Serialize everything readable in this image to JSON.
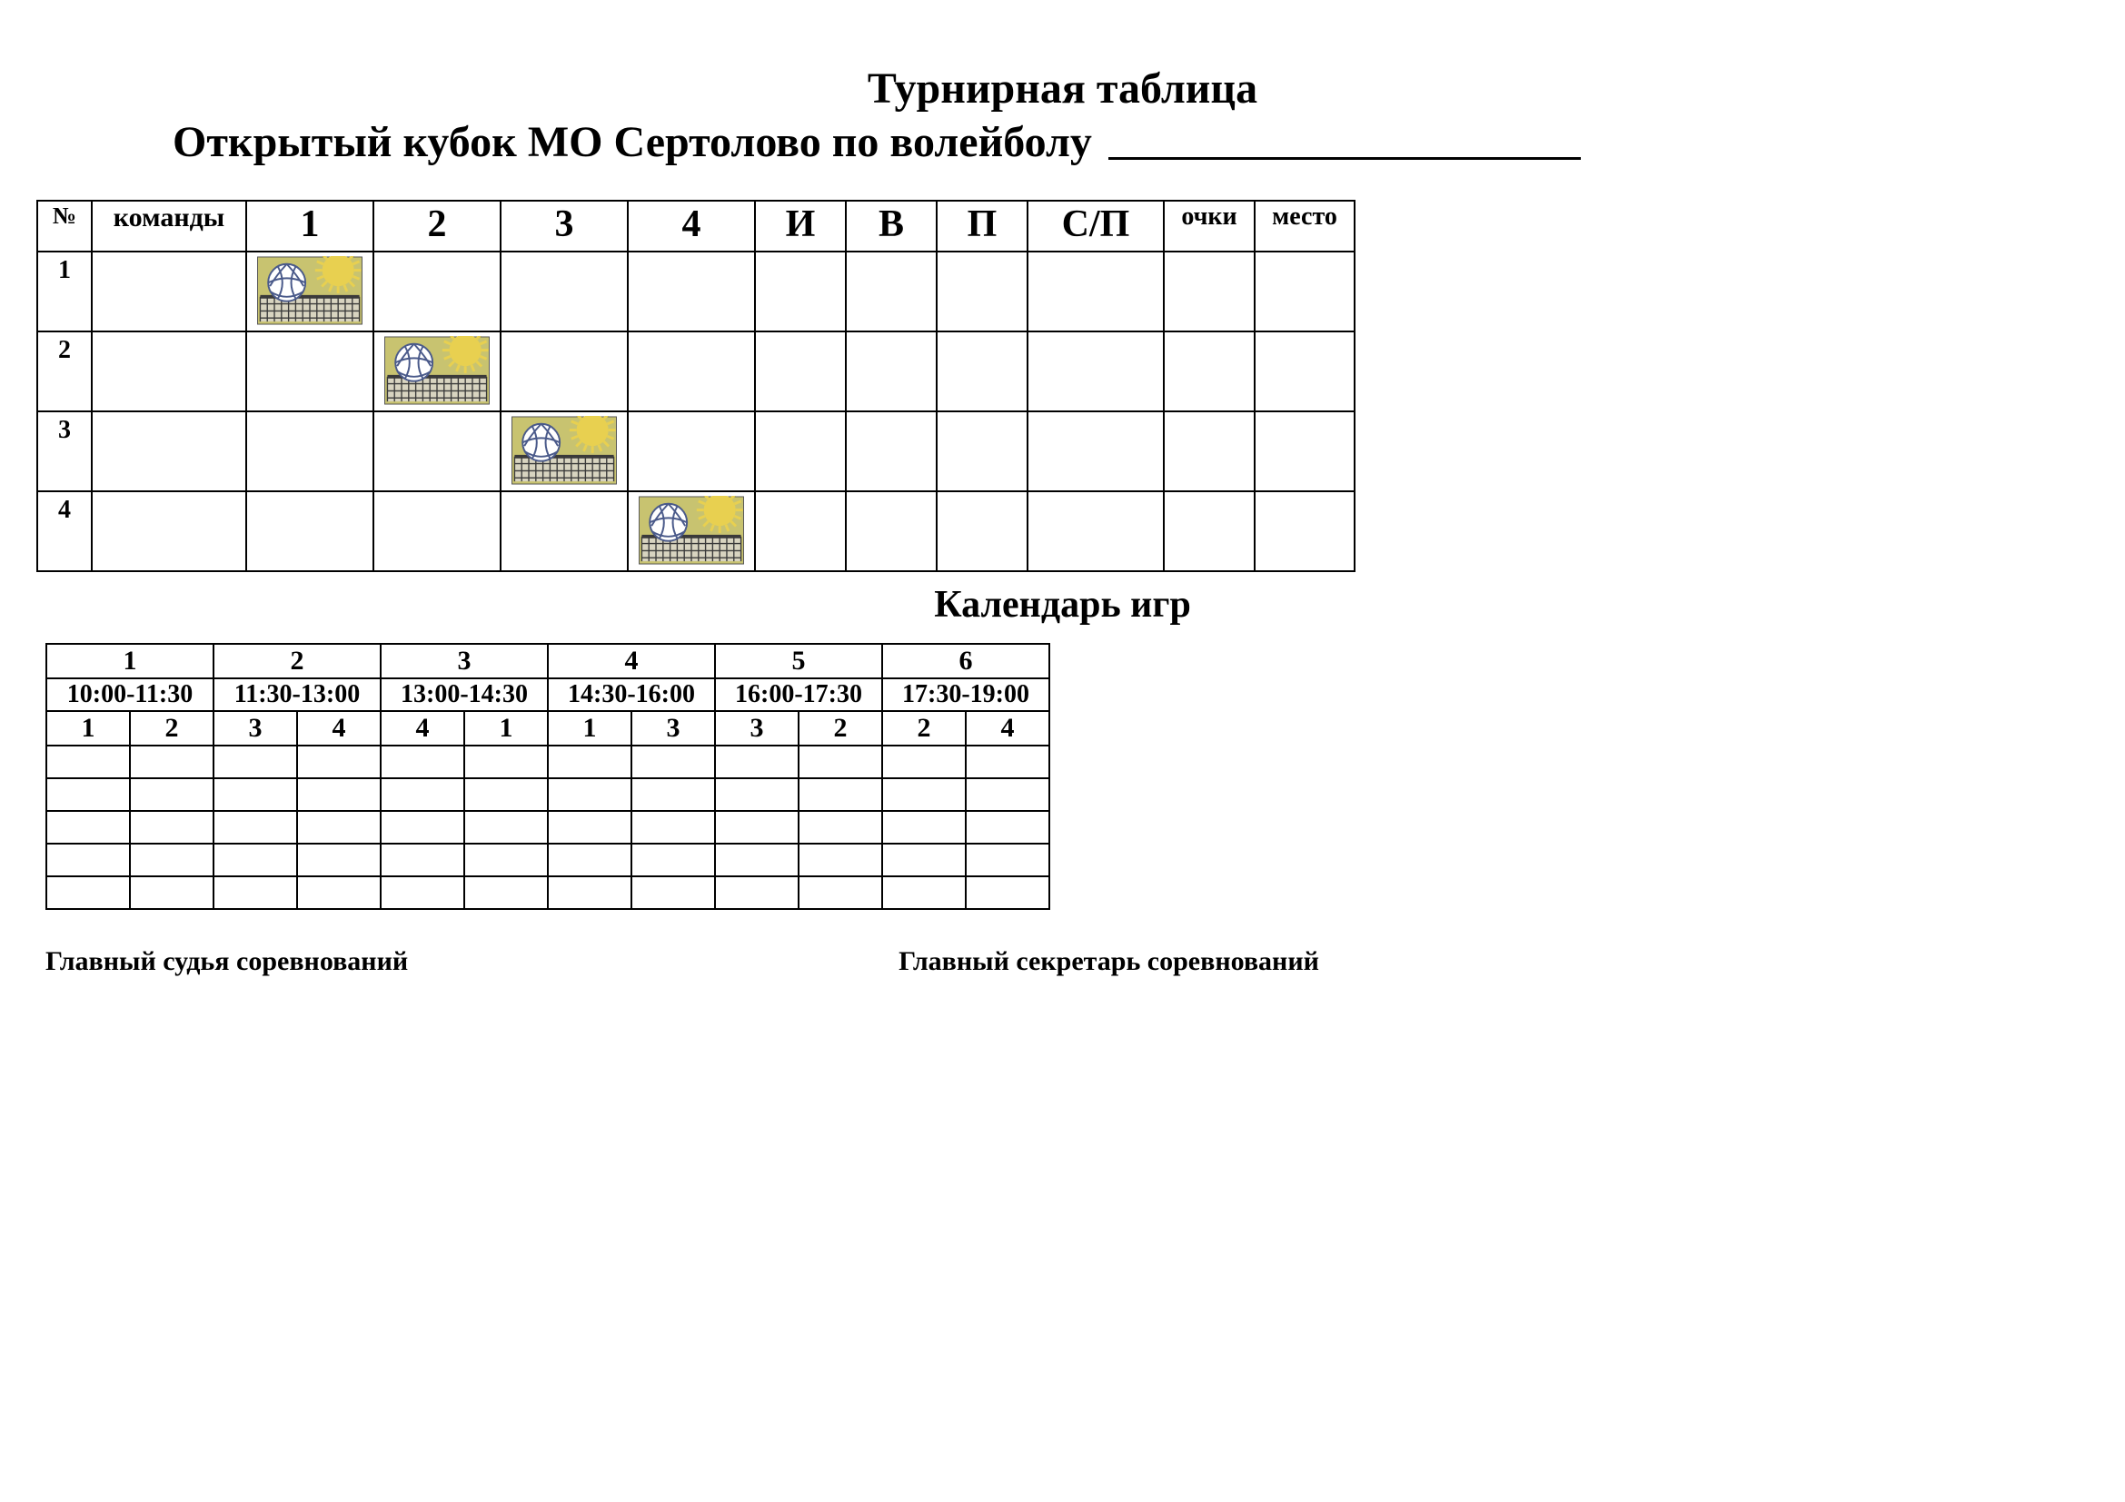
{
  "title_line1": "Турнирная таблица",
  "title_line2": "Открытый кубок МО Сертолово по волейболу",
  "standings": {
    "headers": {
      "num": "№",
      "teams": "команды",
      "cols": [
        "1",
        "2",
        "3",
        "4"
      ],
      "stats": [
        "И",
        "В",
        "П"
      ],
      "sp": "С/П",
      "points": "очки",
      "place": "место"
    },
    "row_labels": [
      "1",
      "2",
      "3",
      "4"
    ],
    "diagonal_icon_bg": "#c8c370",
    "diagonal_icon_ball": "#ffffff",
    "diagonal_icon_lines": "#4a5a8a",
    "diagonal_icon_sun": "#e8d050",
    "diagonal_icon_net": "#3a3a3a"
  },
  "calendar_title": "Календарь игр",
  "calendar": {
    "slots": [
      {
        "n": "1",
        "time": "10:00-11:30",
        "pair": [
          "1",
          "2"
        ]
      },
      {
        "n": "2",
        "time": "11:30-13:00",
        "pair": [
          "3",
          "4"
        ]
      },
      {
        "n": "3",
        "time": "13:00-14:30",
        "pair": [
          "4",
          "1"
        ]
      },
      {
        "n": "4",
        "time": "14:30-16:00",
        "pair": [
          "1",
          "3"
        ]
      },
      {
        "n": "5",
        "time": "16:00-17:30",
        "pair": [
          "3",
          "2"
        ]
      },
      {
        "n": "6",
        "time": "17:30-19:00",
        "pair": [
          "2",
          "4"
        ]
      }
    ],
    "blank_rows": 5
  },
  "signatures": {
    "left": "Главный судья  соревнований",
    "right": "Главный секретарь соревнований"
  }
}
